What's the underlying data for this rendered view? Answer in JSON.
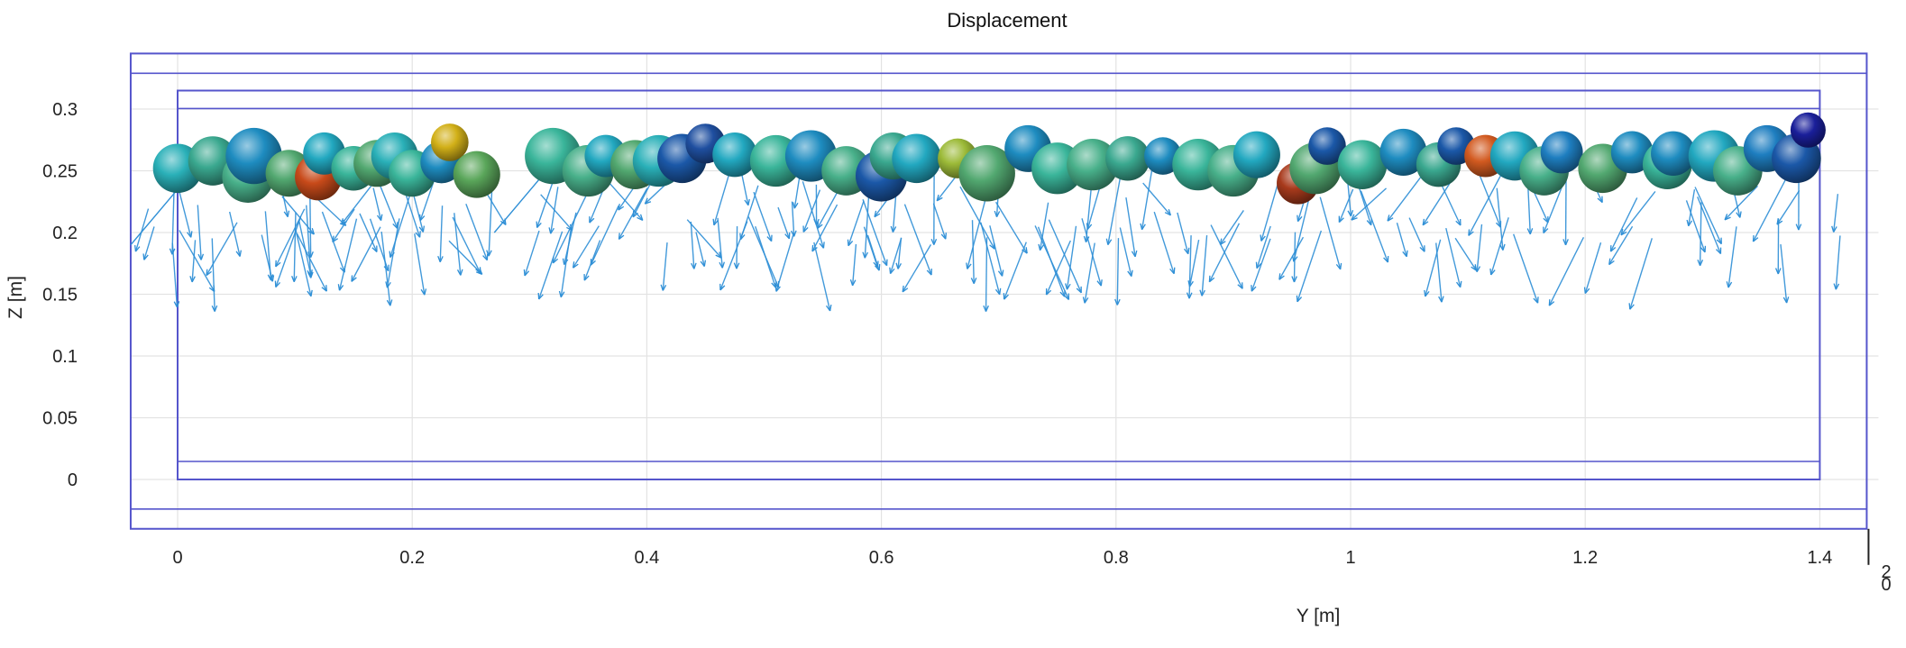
{
  "chart_data": {
    "type": "scatter",
    "title": "Displacement",
    "xlabel": "Y [m]",
    "ylabel": "Z [m]",
    "xlim": [
      -0.04,
      1.45
    ],
    "ylim": [
      -0.04,
      0.345
    ],
    "x_ticks": [
      0,
      0.2,
      0.4,
      0.6,
      0.8,
      1,
      1.2,
      1.4
    ],
    "x_tick_labels": [
      "0",
      "0.2",
      "0.4",
      "0.6",
      "0.8",
      "1",
      "1.2",
      "1.4"
    ],
    "y_ticks": [
      0,
      0.05,
      0.1,
      0.15,
      0.2,
      0.25,
      0.3
    ],
    "y_tick_labels": [
      "0",
      "0.05",
      "0.1",
      "0.15",
      "0.2",
      "0.25",
      "0.3"
    ],
    "corner_tick_labels": [
      "2",
      "0"
    ],
    "grid": true,
    "colors": {
      "box": "#5555cc",
      "arrow": "#2e8fd6",
      "grid": "#e3e3e3"
    },
    "boxes": [
      {
        "y0": 0,
        "y1": 1.4,
        "z0": 0,
        "z1": 0.315
      },
      {
        "y0": -0.04,
        "y1": 1.44,
        "z0": -0.04,
        "z1": 0.345
      }
    ],
    "particles": [
      {
        "y": 0.0,
        "z": 0.252,
        "r": 0.021,
        "color": "#2ab0b8"
      },
      {
        "y": 0.03,
        "z": 0.258,
        "r": 0.021,
        "color": "#3aa88f"
      },
      {
        "y": 0.06,
        "z": 0.245,
        "r": 0.022,
        "color": "#48b08a"
      },
      {
        "y": 0.065,
        "z": 0.262,
        "r": 0.024,
        "color": "#1e8cc0"
      },
      {
        "y": 0.095,
        "z": 0.248,
        "r": 0.02,
        "color": "#52a870"
      },
      {
        "y": 0.12,
        "z": 0.245,
        "r": 0.02,
        "color": "#c84a1a"
      },
      {
        "y": 0.125,
        "z": 0.264,
        "r": 0.018,
        "color": "#22a8c0"
      },
      {
        "y": 0.15,
        "z": 0.252,
        "r": 0.019,
        "color": "#3ab59a"
      },
      {
        "y": 0.17,
        "z": 0.256,
        "r": 0.02,
        "color": "#52a870"
      },
      {
        "y": 0.185,
        "z": 0.262,
        "r": 0.02,
        "color": "#2ab0b8"
      },
      {
        "y": 0.2,
        "z": 0.248,
        "r": 0.02,
        "color": "#3ab59a"
      },
      {
        "y": 0.225,
        "z": 0.257,
        "r": 0.018,
        "color": "#1e8cc0"
      },
      {
        "y": 0.232,
        "z": 0.273,
        "r": 0.016,
        "color": "#d2b018"
      },
      {
        "y": 0.255,
        "z": 0.247,
        "r": 0.02,
        "color": "#5aa65a"
      },
      {
        "y": 0.32,
        "z": 0.262,
        "r": 0.024,
        "color": "#3ab59a"
      },
      {
        "y": 0.35,
        "z": 0.25,
        "r": 0.022,
        "color": "#48b08a"
      },
      {
        "y": 0.365,
        "z": 0.262,
        "r": 0.018,
        "color": "#22a8c0"
      },
      {
        "y": 0.39,
        "z": 0.255,
        "r": 0.021,
        "color": "#52a870"
      },
      {
        "y": 0.41,
        "z": 0.258,
        "r": 0.022,
        "color": "#2ab0b8"
      },
      {
        "y": 0.43,
        "z": 0.26,
        "r": 0.021,
        "color": "#1b58a8"
      },
      {
        "y": 0.45,
        "z": 0.272,
        "r": 0.017,
        "color": "#1f4fa0"
      },
      {
        "y": 0.475,
        "z": 0.263,
        "r": 0.019,
        "color": "#22a8c0"
      },
      {
        "y": 0.51,
        "z": 0.258,
        "r": 0.022,
        "color": "#3ab59a"
      },
      {
        "y": 0.54,
        "z": 0.262,
        "r": 0.022,
        "color": "#1e8cc0"
      },
      {
        "y": 0.57,
        "z": 0.25,
        "r": 0.021,
        "color": "#48b08a"
      },
      {
        "y": 0.6,
        "z": 0.246,
        "r": 0.022,
        "color": "#1b58a8"
      },
      {
        "y": 0.61,
        "z": 0.262,
        "r": 0.02,
        "color": "#3aa88f"
      },
      {
        "y": 0.63,
        "z": 0.26,
        "r": 0.021,
        "color": "#22a8c0"
      },
      {
        "y": 0.665,
        "z": 0.26,
        "r": 0.017,
        "color": "#9cba38"
      },
      {
        "y": 0.69,
        "z": 0.248,
        "r": 0.024,
        "color": "#52a870"
      },
      {
        "y": 0.725,
        "z": 0.268,
        "r": 0.02,
        "color": "#1e8cc0"
      },
      {
        "y": 0.75,
        "z": 0.252,
        "r": 0.022,
        "color": "#3ab59a"
      },
      {
        "y": 0.78,
        "z": 0.255,
        "r": 0.022,
        "color": "#48b08a"
      },
      {
        "y": 0.81,
        "z": 0.26,
        "r": 0.019,
        "color": "#3aa88f"
      },
      {
        "y": 0.84,
        "z": 0.262,
        "r": 0.016,
        "color": "#1e8cc0"
      },
      {
        "y": 0.87,
        "z": 0.255,
        "r": 0.022,
        "color": "#3ab59a"
      },
      {
        "y": 0.9,
        "z": 0.25,
        "r": 0.022,
        "color": "#48b08a"
      },
      {
        "y": 0.92,
        "z": 0.263,
        "r": 0.02,
        "color": "#22a8c0"
      },
      {
        "y": 0.955,
        "z": 0.24,
        "r": 0.018,
        "color": "#a83a1c"
      },
      {
        "y": 0.97,
        "z": 0.252,
        "r": 0.022,
        "color": "#52a870"
      },
      {
        "y": 0.98,
        "z": 0.27,
        "r": 0.016,
        "color": "#1b58a8"
      },
      {
        "y": 1.01,
        "z": 0.255,
        "r": 0.021,
        "color": "#3ab59a"
      },
      {
        "y": 1.045,
        "z": 0.265,
        "r": 0.02,
        "color": "#1e8cc0"
      },
      {
        "y": 1.075,
        "z": 0.255,
        "r": 0.019,
        "color": "#3aa88f"
      },
      {
        "y": 1.09,
        "z": 0.27,
        "r": 0.016,
        "color": "#1b58a8"
      },
      {
        "y": 1.115,
        "z": 0.262,
        "r": 0.018,
        "color": "#d25a20"
      },
      {
        "y": 1.14,
        "z": 0.262,
        "r": 0.021,
        "color": "#22a8c0"
      },
      {
        "y": 1.165,
        "z": 0.25,
        "r": 0.021,
        "color": "#48b08a"
      },
      {
        "y": 1.18,
        "z": 0.265,
        "r": 0.018,
        "color": "#1e7ec0"
      },
      {
        "y": 1.215,
        "z": 0.252,
        "r": 0.021,
        "color": "#52a870"
      },
      {
        "y": 1.24,
        "z": 0.265,
        "r": 0.018,
        "color": "#1e8cc0"
      },
      {
        "y": 1.27,
        "z": 0.255,
        "r": 0.021,
        "color": "#3ab59a"
      },
      {
        "y": 1.275,
        "z": 0.264,
        "r": 0.019,
        "color": "#1e8cc0"
      },
      {
        "y": 1.31,
        "z": 0.262,
        "r": 0.022,
        "color": "#22a8c0"
      },
      {
        "y": 1.33,
        "z": 0.25,
        "r": 0.021,
        "color": "#48b08a"
      },
      {
        "y": 1.355,
        "z": 0.268,
        "r": 0.02,
        "color": "#1e7ec0"
      },
      {
        "y": 1.38,
        "z": 0.26,
        "r": 0.021,
        "color": "#1b58a8"
      },
      {
        "y": 1.39,
        "z": 0.283,
        "r": 0.015,
        "color": "#1a1f9a"
      }
    ],
    "arrows": {
      "count": 190,
      "z_start_range": [
        0.19,
        0.255
      ],
      "dz_range": [
        -0.06,
        -0.025
      ],
      "dy_range": [
        -0.03,
        0.03
      ],
      "gaps": [
        [
          0.27,
          0.3
        ]
      ]
    }
  }
}
